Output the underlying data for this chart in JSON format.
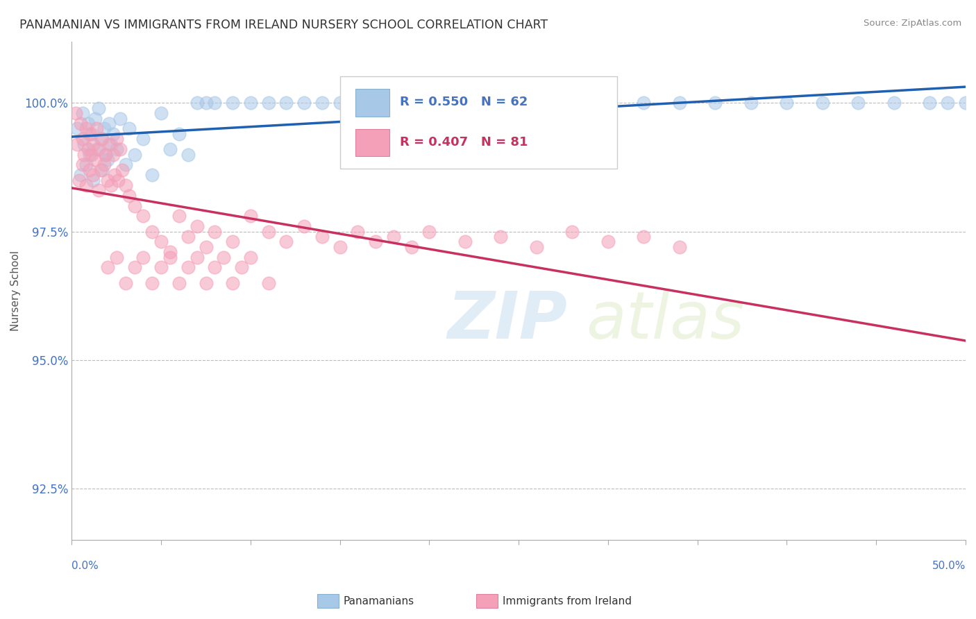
{
  "title": "PANAMANIAN VS IMMIGRANTS FROM IRELAND NURSERY SCHOOL CORRELATION CHART",
  "source": "Source: ZipAtlas.com",
  "ylabel": "Nursery School",
  "xlim": [
    0.0,
    50.0
  ],
  "ylim": [
    91.5,
    101.2
  ],
  "yticks": [
    92.5,
    95.0,
    97.5,
    100.0
  ],
  "ytick_labels": [
    "92.5%",
    "95.0%",
    "97.5%",
    "100.0%"
  ],
  "blue_R": 0.55,
  "blue_N": 62,
  "pink_R": 0.407,
  "pink_N": 81,
  "blue_color": "#a8c8e8",
  "pink_color": "#f4a0b8",
  "blue_line_color": "#2060b0",
  "pink_line_color": "#c83060",
  "background_color": "#ffffff",
  "blue_x": [
    0.3,
    0.5,
    0.6,
    0.7,
    0.8,
    0.9,
    1.0,
    1.1,
    1.2,
    1.3,
    1.4,
    1.5,
    1.6,
    1.7,
    1.8,
    1.9,
    2.0,
    2.1,
    2.2,
    2.3,
    2.5,
    2.7,
    3.0,
    3.2,
    3.5,
    4.0,
    4.5,
    5.0,
    5.5,
    6.0,
    6.5,
    7.0,
    7.5,
    8.0,
    9.0,
    10.0,
    11.0,
    12.0,
    13.0,
    14.0,
    15.0,
    16.0,
    17.0,
    18.0,
    19.0,
    20.0,
    22.0,
    24.0,
    26.0,
    28.0,
    30.0,
    32.0,
    34.0,
    36.0,
    38.0,
    40.0,
    42.0,
    44.0,
    46.0,
    48.0,
    49.0,
    50.0
  ],
  "blue_y": [
    99.5,
    98.6,
    99.8,
    99.2,
    98.8,
    99.6,
    99.0,
    99.4,
    98.5,
    99.7,
    99.1,
    99.9,
    99.3,
    98.7,
    99.5,
    99.0,
    98.9,
    99.6,
    99.2,
    99.4,
    99.1,
    99.7,
    98.8,
    99.5,
    99.0,
    99.3,
    98.6,
    99.8,
    99.1,
    99.4,
    99.0,
    100.0,
    100.0,
    100.0,
    100.0,
    100.0,
    100.0,
    100.0,
    100.0,
    100.0,
    100.0,
    100.0,
    100.0,
    100.0,
    100.0,
    100.0,
    100.0,
    100.0,
    100.0,
    100.0,
    100.0,
    100.0,
    100.0,
    100.0,
    100.0,
    100.0,
    100.0,
    100.0,
    100.0,
    100.0,
    100.0,
    100.0
  ],
  "pink_x": [
    0.2,
    0.3,
    0.4,
    0.5,
    0.6,
    0.6,
    0.7,
    0.8,
    0.8,
    0.9,
    1.0,
    1.0,
    1.1,
    1.2,
    1.2,
    1.3,
    1.4,
    1.5,
    1.5,
    1.6,
    1.7,
    1.8,
    1.9,
    2.0,
    2.1,
    2.2,
    2.3,
    2.4,
    2.5,
    2.6,
    2.7,
    2.8,
    3.0,
    3.2,
    3.5,
    4.0,
    4.5,
    5.0,
    5.5,
    6.0,
    6.5,
    7.0,
    7.5,
    8.0,
    9.0,
    10.0,
    11.0,
    12.0,
    13.0,
    14.0,
    15.0,
    16.0,
    17.0,
    18.0,
    19.0,
    20.0,
    22.0,
    24.0,
    26.0,
    28.0,
    30.0,
    32.0,
    34.0,
    2.0,
    2.5,
    3.0,
    3.5,
    4.0,
    4.5,
    5.0,
    5.5,
    6.0,
    6.5,
    7.0,
    7.5,
    8.0,
    8.5,
    9.0,
    9.5,
    10.0,
    11.0
  ],
  "pink_y": [
    99.8,
    99.2,
    98.5,
    99.6,
    98.8,
    99.3,
    99.0,
    98.4,
    99.5,
    99.1,
    98.7,
    99.4,
    99.0,
    98.6,
    99.2,
    98.9,
    99.5,
    98.3,
    99.1,
    98.7,
    99.3,
    98.8,
    99.0,
    98.5,
    99.2,
    98.4,
    99.0,
    98.6,
    99.3,
    98.5,
    99.1,
    98.7,
    98.4,
    98.2,
    98.0,
    97.8,
    97.5,
    97.3,
    97.1,
    97.8,
    97.4,
    97.6,
    97.2,
    97.5,
    97.3,
    97.8,
    97.5,
    97.3,
    97.6,
    97.4,
    97.2,
    97.5,
    97.3,
    97.4,
    97.2,
    97.5,
    97.3,
    97.4,
    97.2,
    97.5,
    97.3,
    97.4,
    97.2,
    96.8,
    97.0,
    96.5,
    96.8,
    97.0,
    96.5,
    96.8,
    97.0,
    96.5,
    96.8,
    97.0,
    96.5,
    96.8,
    97.0,
    96.5,
    96.8,
    97.0,
    96.5
  ]
}
